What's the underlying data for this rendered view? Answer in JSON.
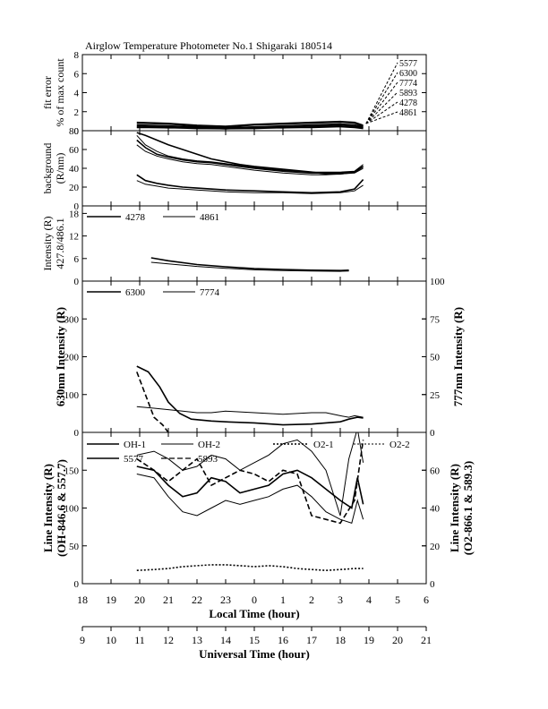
{
  "title": "Airglow Temperature Photometer No.1  Shigaraki  180514",
  "x_axis": {
    "local_label": "Local Time (hour)",
    "local_ticks": [
      18,
      19,
      20,
      21,
      22,
      23,
      0,
      1,
      2,
      3,
      4,
      5,
      6
    ],
    "ut_label": "Universal Time (hour)",
    "ut_ticks": [
      9,
      10,
      11,
      12,
      13,
      14,
      15,
      16,
      17,
      18,
      19,
      20,
      21
    ]
  },
  "chart_data": [
    {
      "id": "fit_error",
      "type": "line",
      "ylabel_lines": [
        "fit error",
        "% of max count"
      ],
      "ylim": [
        0,
        8
      ],
      "yticks": [
        0,
        2,
        4,
        6,
        8
      ],
      "x_unit": "local hour, 18 = 18:00, 30 = 06:00 next day",
      "legend": [
        "5577",
        "6300",
        "7774",
        "5893",
        "4278",
        "4861"
      ],
      "series": [
        {
          "name": "5577",
          "x": [
            19.9,
            21,
            22,
            23,
            24,
            25,
            26,
            27,
            27.5,
            27.8
          ],
          "y": [
            0.8,
            0.7,
            0.5,
            0.4,
            0.6,
            0.7,
            0.8,
            0.9,
            0.8,
            0.5
          ]
        },
        {
          "name": "6300",
          "x": [
            19.9,
            21,
            22,
            23,
            24,
            25,
            26,
            27,
            27.5,
            27.8
          ],
          "y": [
            0.9,
            0.8,
            0.6,
            0.5,
            0.7,
            0.8,
            0.9,
            1.0,
            0.9,
            0.6
          ]
        },
        {
          "name": "7774",
          "x": [
            19.9,
            21,
            22,
            23,
            24,
            25,
            26,
            27,
            27.5,
            27.8
          ],
          "y": [
            0.6,
            0.5,
            0.4,
            0.3,
            0.4,
            0.5,
            0.6,
            0.7,
            0.6,
            0.4
          ]
        },
        {
          "name": "5893",
          "x": [
            19.9,
            21,
            22,
            23,
            24,
            25,
            26,
            27,
            27.5,
            27.8
          ],
          "y": [
            0.5,
            0.4,
            0.3,
            0.3,
            0.4,
            0.4,
            0.5,
            0.6,
            0.5,
            0.3
          ]
        },
        {
          "name": "4278",
          "x": [
            19.9,
            21,
            22,
            23,
            24,
            25,
            26,
            27,
            27.5,
            27.8
          ],
          "y": [
            0.4,
            0.3,
            0.3,
            0.2,
            0.3,
            0.3,
            0.4,
            0.5,
            0.4,
            0.3
          ]
        },
        {
          "name": "4861",
          "x": [
            19.9,
            21,
            22,
            23,
            24,
            25,
            26,
            27,
            27.5,
            27.8
          ],
          "y": [
            0.3,
            0.3,
            0.2,
            0.2,
            0.2,
            0.3,
            0.3,
            0.4,
            0.3,
            0.2
          ]
        }
      ]
    },
    {
      "id": "background",
      "type": "line",
      "ylabel_lines": [
        "background",
        "(R/nm)"
      ],
      "ylim": [
        0,
        80
      ],
      "yticks": [
        0,
        20,
        40,
        60,
        80
      ],
      "series": [
        {
          "x": [
            19.9,
            20.2,
            20.6,
            21,
            21.5,
            22,
            22.5,
            23,
            23.5,
            24,
            25,
            26,
            26.5,
            27,
            27.5,
            27.8
          ],
          "y": [
            70,
            62,
            55,
            52,
            49,
            47,
            46,
            44,
            42,
            40,
            37,
            35,
            35,
            35,
            36,
            42
          ]
        },
        {
          "x": [
            19.9,
            20.2,
            20.6,
            21,
            21.5,
            22,
            22.5,
            23,
            23.5,
            24,
            25,
            26,
            26.5,
            27,
            27.5,
            27.8
          ],
          "y": [
            75,
            65,
            58,
            53,
            50,
            48,
            47,
            45,
            43,
            41,
            38,
            36,
            36,
            36,
            37,
            44
          ]
        },
        {
          "x": [
            19.9,
            20.2,
            20.6,
            21,
            21.5,
            22,
            22.5,
            23,
            23.5,
            24,
            25,
            26,
            26.5,
            27,
            27.5,
            27.8
          ],
          "y": [
            78,
            75,
            70,
            65,
            60,
            55,
            50,
            47,
            44,
            42,
            39,
            36,
            34,
            34,
            36,
            42
          ]
        },
        {
          "x": [
            19.9,
            20.2,
            20.6,
            21,
            21.5,
            22,
            22.5,
            23,
            23.5,
            24,
            25,
            26,
            26.5,
            27,
            27.5,
            27.8
          ],
          "y": [
            65,
            58,
            53,
            50,
            47,
            45,
            44,
            42,
            40,
            38,
            35,
            33,
            33,
            34,
            35,
            40
          ]
        },
        {
          "x": [
            19.9,
            20.2,
            20.6,
            21,
            21.5,
            22,
            23,
            24,
            25,
            26,
            27,
            27.5,
            27.8
          ],
          "y": [
            33,
            27,
            24,
            22,
            20,
            19,
            17,
            16,
            15,
            14,
            15,
            18,
            28
          ]
        },
        {
          "x": [
            19.9,
            20.2,
            20.6,
            21,
            21.5,
            22,
            23,
            24,
            25,
            26,
            27,
            27.5,
            27.8
          ],
          "y": [
            27,
            23,
            21,
            19,
            18,
            17,
            15,
            14,
            14,
            13,
            14,
            16,
            22
          ]
        }
      ]
    },
    {
      "id": "intensity_4278",
      "type": "line",
      "ylabel_lines": [
        "Intensity (R)",
        "427.8/486.1"
      ],
      "ylim": [
        0,
        20
      ],
      "yticks": [
        0,
        6,
        12,
        18
      ],
      "legend": [
        "4278",
        "4861"
      ],
      "series": [
        {
          "name": "4278",
          "x": [
            20.4,
            21,
            22,
            23,
            24,
            25,
            26,
            27,
            27.3
          ],
          "y": [
            6.2,
            5.4,
            4.4,
            3.8,
            3.3,
            3.1,
            2.9,
            2.8,
            2.9
          ]
        },
        {
          "name": "4861",
          "x": [
            20.4,
            21,
            22,
            23,
            24,
            25,
            26,
            27,
            27.3
          ],
          "y": [
            5.0,
            4.6,
            3.9,
            3.4,
            3.0,
            2.8,
            2.7,
            2.6,
            2.7
          ]
        }
      ]
    },
    {
      "id": "intensity_630",
      "type": "line",
      "ylabel_left": "630nm Intensity (R)",
      "ylabel_right": "777nm Intensity (R)",
      "ylim_left": [
        0,
        400
      ],
      "yticks_left": [
        0,
        100,
        200,
        300
      ],
      "ylim_right": [
        0,
        100
      ],
      "yticks_right": [
        0,
        25,
        50,
        75,
        100
      ],
      "legend": [
        "6300",
        "7774"
      ],
      "series": [
        {
          "name": "6300",
          "axis": "left",
          "x": [
            19.9,
            20.3,
            20.7,
            21,
            21.4,
            21.8,
            22.5,
            23,
            24,
            25,
            26,
            26.5,
            27,
            27.3,
            27.6,
            27.8
          ],
          "y": [
            175,
            160,
            120,
            80,
            50,
            35,
            30,
            28,
            25,
            20,
            22,
            25,
            28,
            35,
            40,
            38
          ]
        },
        {
          "name": "7774",
          "axis": "right",
          "x": [
            19.9,
            20.5,
            21,
            21.5,
            22,
            22.5,
            23,
            24,
            25,
            26,
            26.5,
            27,
            27.3,
            27.5,
            27.8
          ],
          "y": [
            17,
            16,
            15,
            14,
            13,
            13,
            14,
            13,
            12,
            13,
            13,
            11,
            10,
            11,
            10
          ]
        },
        {
          "name": "6300 (dashed)",
          "axis": "left",
          "style": "dashed",
          "x": [
            19.9,
            20.2,
            20.5,
            20.8,
            21.0
          ],
          "y": [
            160,
            100,
            40,
            20,
            0
          ]
        }
      ]
    },
    {
      "id": "line_intensity",
      "type": "line",
      "ylabel_left_lines": [
        "Line Intensity (R)",
        "(OH-846.6 & 557.7)"
      ],
      "ylabel_right_lines": [
        "Line Intensity (R)",
        "(O2-866.1 & 589.3)"
      ],
      "ylim_left": [
        0,
        200
      ],
      "yticks_left": [
        0,
        50,
        100,
        150
      ],
      "ylim_right": [
        0,
        80
      ],
      "yticks_right": [
        0,
        20,
        40,
        60
      ],
      "legend": [
        "OH-1",
        "OH-2",
        "O2-1",
        "O2-2",
        "5577",
        "5893"
      ],
      "series": [
        {
          "name": "OH-1",
          "axis": "left",
          "x": [
            19.9,
            20.5,
            21,
            21.5,
            22,
            22.5,
            23,
            23.5,
            24,
            24.5,
            25,
            25.5,
            26,
            26.5,
            27,
            27.4,
            27.6,
            27.8
          ],
          "y": [
            155,
            150,
            130,
            115,
            120,
            140,
            135,
            120,
            125,
            130,
            145,
            150,
            140,
            125,
            110,
            100,
            140,
            105
          ]
        },
        {
          "name": "OH-2",
          "axis": "left",
          "x": [
            19.9,
            20.5,
            21,
            21.5,
            22,
            22.5,
            23,
            23.5,
            24,
            24.5,
            25,
            25.5,
            26,
            26.5,
            27,
            27.4,
            27.6,
            27.8
          ],
          "y": [
            145,
            140,
            115,
            95,
            90,
            100,
            110,
            105,
            110,
            115,
            125,
            130,
            115,
            95,
            85,
            80,
            110,
            85
          ]
        },
        {
          "name": "O2-1",
          "axis": "right",
          "style": "dotted",
          "x": [
            19.9,
            20.5,
            21,
            21.5,
            22,
            22.5,
            23,
            23.5,
            24,
            24.5,
            25,
            25.5,
            26,
            26.5,
            27,
            27.5,
            27.8
          ],
          "y": [
            7,
            7.5,
            8,
            9,
            9.5,
            10,
            10,
            9.5,
            9,
            9.5,
            9,
            8,
            7.5,
            7,
            7.5,
            8,
            8
          ]
        },
        {
          "name": "5577",
          "axis": "left",
          "x": [
            19.9,
            20.5,
            21,
            21.5,
            22,
            22.5,
            23,
            23.5,
            24,
            24.5,
            25,
            25.5,
            26,
            26.5,
            27,
            27.3,
            27.6,
            27.8
          ],
          "y": [
            170,
            175,
            165,
            150,
            155,
            170,
            165,
            150,
            160,
            170,
            185,
            190,
            175,
            150,
            90,
            165,
            205,
            160
          ]
        },
        {
          "name": "5893",
          "axis": "left",
          "style": "dashed",
          "x": [
            19.9,
            20.5,
            21,
            21.5,
            22,
            22.5,
            23,
            23.5,
            24,
            24.5,
            25,
            25.5,
            26,
            26.5,
            27,
            27.5,
            27.8
          ],
          "y": [
            165,
            150,
            135,
            150,
            165,
            130,
            140,
            150,
            145,
            135,
            150,
            145,
            90,
            85,
            80,
            110,
            190
          ]
        }
      ]
    }
  ]
}
